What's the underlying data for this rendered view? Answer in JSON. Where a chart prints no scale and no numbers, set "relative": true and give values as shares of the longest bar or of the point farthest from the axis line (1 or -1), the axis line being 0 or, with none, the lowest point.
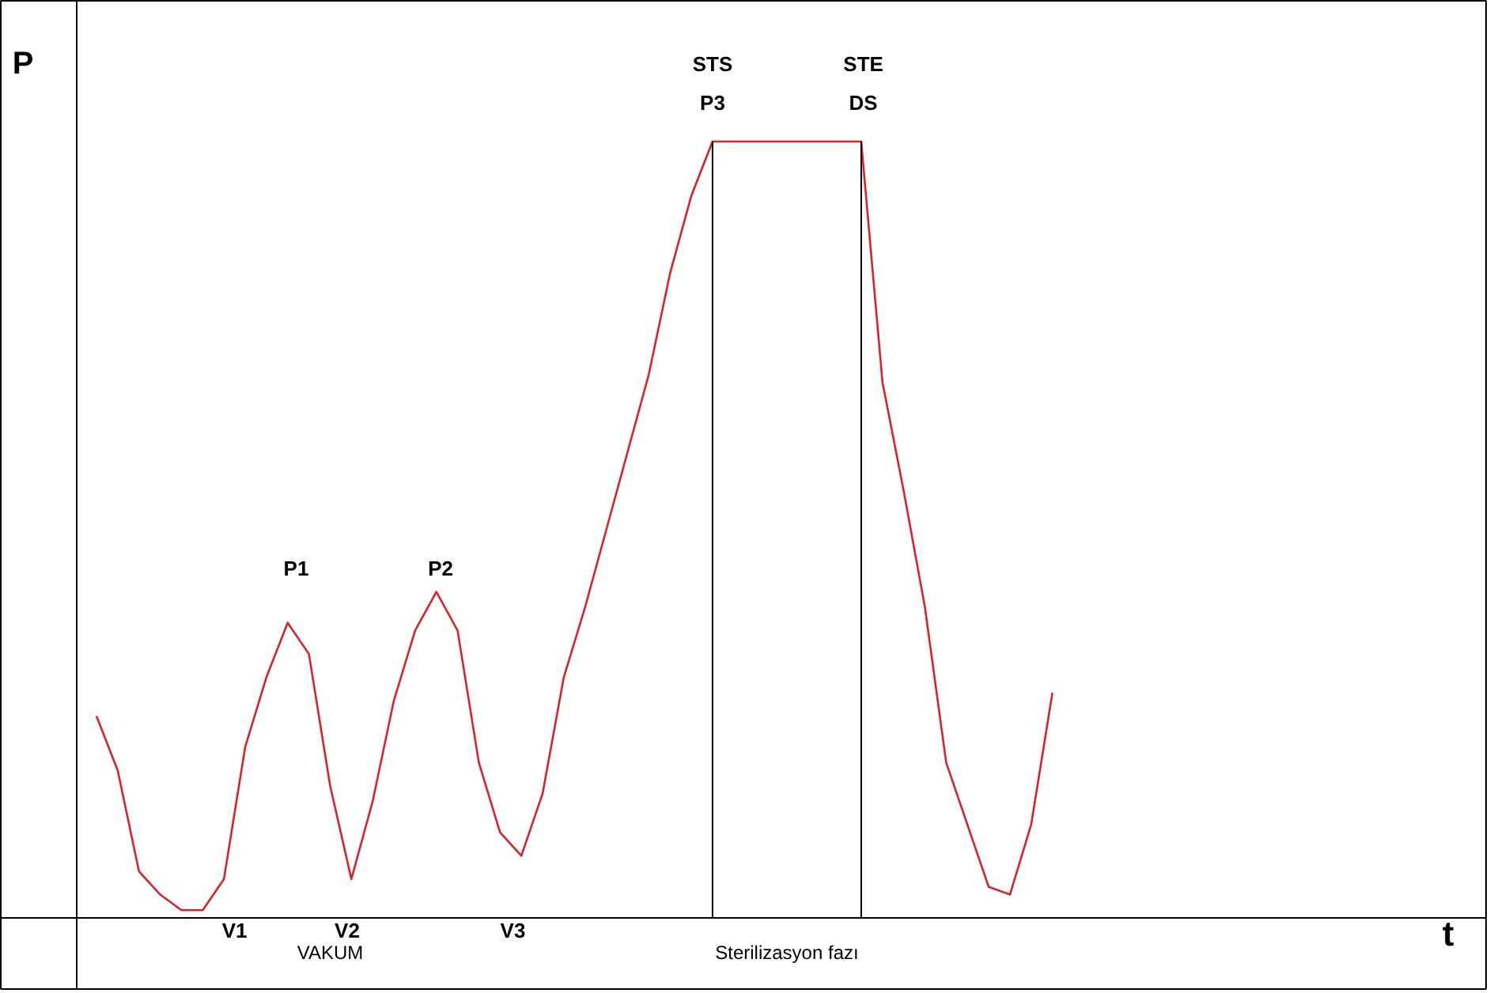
{
  "chart_data": {
    "type": "line",
    "relative": true,
    "ylabel": "P",
    "categories": [
      null,
      null,
      null,
      null,
      null,
      null,
      null,
      null,
      null,
      null,
      null,
      null,
      null,
      null,
      null,
      null,
      null,
      null,
      null,
      null,
      null,
      null,
      null,
      null,
      null,
      null,
      null,
      null,
      null,
      null,
      null,
      null,
      null,
      null,
      null,
      null,
      null,
      null,
      null,
      null,
      null,
      null,
      null,
      null,
      null,
      null
    ],
    "series": [
      {
        "color": "#d9232a",
        "values": [
          0.26,
          0.19,
          0.06,
          0.03,
          0.01,
          0.01,
          0.05,
          0.22,
          0.31,
          0.38,
          0.34,
          0.17,
          0.05,
          0.15,
          0.28,
          0.37,
          0.42,
          0.37,
          0.2,
          0.11,
          0.08,
          0.16,
          0.31,
          0.4,
          0.5,
          0.6,
          0.7,
          0.83,
          0.93,
          1.0,
          1.0,
          1.0,
          1.0,
          1.0,
          1.0,
          1.0,
          1.0,
          0.69,
          0.55,
          0.4,
          0.2,
          0.12,
          0.04,
          0.03,
          0.12,
          0.29
        ]
      }
    ],
    "annotations": [
      "P1",
      "P2",
      "V1",
      "V2",
      "V3",
      "STS",
      "P3",
      "STE",
      "DS",
      "VAKUM",
      "Sterilizasyon fazı",
      "t"
    ],
    "marker": "none",
    "line_style": "solid"
  }
}
